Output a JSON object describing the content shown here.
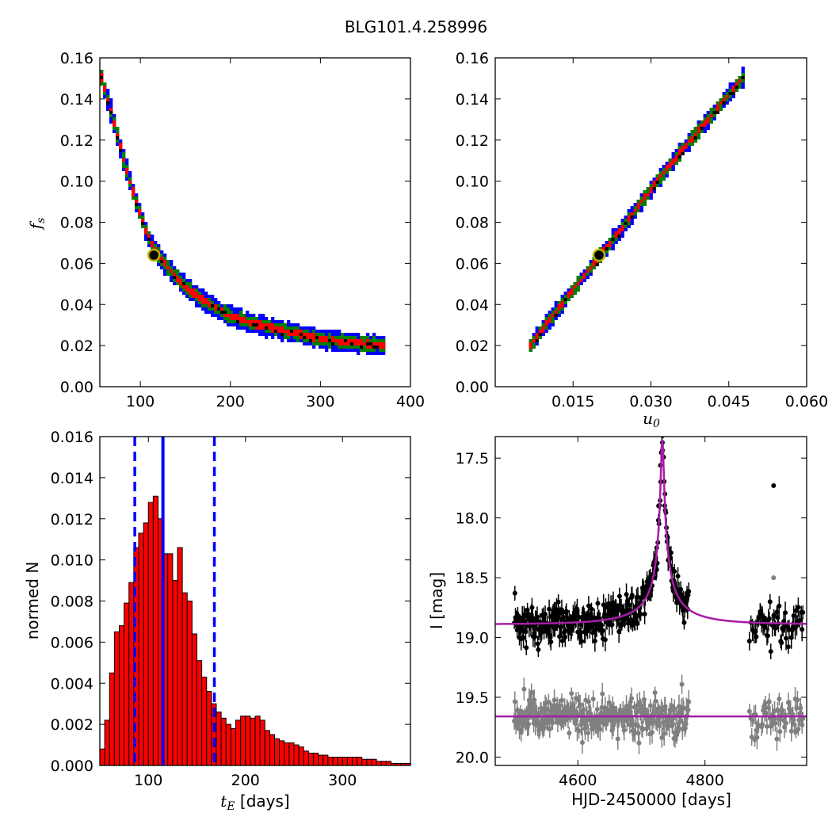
{
  "title": "BLG101.4.258996",
  "colors": {
    "level1": "#ff0000",
    "level2": "#008000",
    "level3": "#0000ff",
    "best": "#000000",
    "marker_ring": "#b5b500",
    "model": "#a81ca8",
    "data_primary": "#000000",
    "data_secondary": "#808080",
    "hist_fill": "#ff0000"
  },
  "chart_data": [
    {
      "id": "fs_vs_tE",
      "type": "heatmap",
      "xlabel": "",
      "ylabel": "f_s",
      "xlim": [
        55,
        400
      ],
      "ylim": [
        0,
        0.16
      ],
      "xticks": [
        100,
        200,
        300,
        400
      ],
      "yticks": [
        "0.00",
        "0.02",
        "0.04",
        "0.06",
        "0.08",
        "0.10",
        "0.12",
        "0.14",
        "0.16"
      ],
      "ridge_x": [
        55,
        65,
        75,
        85,
        95,
        105,
        115,
        130,
        150,
        175,
        200,
        230,
        260,
        300,
        340,
        370
      ],
      "ridge_y": [
        0.15,
        0.135,
        0.118,
        0.102,
        0.088,
        0.075,
        0.066,
        0.057,
        0.048,
        0.04,
        0.034,
        0.03,
        0.027,
        0.023,
        0.021,
        0.02
      ],
      "best_fit": {
        "x": 115,
        "y": 0.064
      }
    },
    {
      "id": "fs_vs_u0",
      "type": "heatmap",
      "xlabel": "u_0",
      "ylabel": "",
      "xlim": [
        0.0,
        0.06
      ],
      "ylim": [
        0,
        0.16
      ],
      "xticks": [
        "0.015",
        "0.030",
        "0.045",
        "0.060"
      ],
      "yticks": [
        "0.00",
        "0.02",
        "0.04",
        "0.06",
        "0.08",
        "0.10",
        "0.12",
        "0.14",
        "0.16"
      ],
      "ridge_x": [
        0.0065,
        0.01,
        0.015,
        0.02,
        0.025,
        0.03,
        0.035,
        0.04,
        0.045,
        0.048
      ],
      "ridge_y": [
        0.02,
        0.032,
        0.048,
        0.064,
        0.08,
        0.097,
        0.113,
        0.128,
        0.143,
        0.152
      ],
      "best_fit": {
        "x": 0.02,
        "y": 0.064
      }
    },
    {
      "id": "tE_histogram",
      "type": "bar",
      "xlabel": "t_E",
      "xlabel_suffix": " [days]",
      "ylabel": "normed N",
      "xlim": [
        50,
        370
      ],
      "ylim": [
        0,
        0.016
      ],
      "xticks": [
        100,
        200,
        300
      ],
      "yticks": [
        "0.000",
        "0.002",
        "0.004",
        "0.006",
        "0.008",
        "0.010",
        "0.012",
        "0.014",
        "0.016"
      ],
      "bin_start": 50,
      "bin_width": 5,
      "values": [
        0.0008,
        0.0022,
        0.0045,
        0.0065,
        0.0068,
        0.0079,
        0.0089,
        0.0106,
        0.0113,
        0.0118,
        0.0128,
        0.0131,
        0.012,
        0.0103,
        0.0103,
        0.009,
        0.0106,
        0.0084,
        0.008,
        0.0064,
        0.0051,
        0.0043,
        0.0036,
        0.003,
        0.0026,
        0.0023,
        0.002,
        0.0018,
        0.0022,
        0.0024,
        0.0024,
        0.0023,
        0.0024,
        0.0022,
        0.0017,
        0.0015,
        0.0013,
        0.0012,
        0.0011,
        0.0011,
        0.001,
        0.0009,
        0.0007,
        0.0006,
        0.0006,
        0.0005,
        0.0005,
        0.0004,
        0.0004,
        0.0004,
        0.0004,
        0.0004,
        0.0004,
        0.0004,
        0.0003,
        0.0003,
        0.0003,
        0.0002,
        0.0002,
        0.0002,
        0.0001,
        0.0001,
        0.0001,
        0.0001
      ],
      "median": 115,
      "interval": [
        86,
        168
      ]
    },
    {
      "id": "light_curve",
      "type": "scatter",
      "xlabel": "HJD-2450000 [days]",
      "ylabel": "I [mag]",
      "xlim": [
        4470,
        4960
      ],
      "ylim": [
        20.07,
        17.32
      ],
      "xticks": [
        4600,
        4800
      ],
      "yticks": [
        "17.5",
        "18.0",
        "18.5",
        "19.0",
        "19.5",
        "20.0"
      ],
      "model": {
        "t0": 4733,
        "baseline": 18.89,
        "u0": 0.02,
        "tE": 115,
        "fs": 0.064
      },
      "secondary_baseline": 19.66,
      "season_ranges": [
        [
          4500,
          4775
        ],
        [
          4870,
          4955
        ]
      ],
      "extra_points": [
        {
          "x": 4733,
          "y": 17.37
        },
        {
          "x": 4730,
          "y": 17.56
        },
        {
          "x": 4737,
          "y": 17.8
        },
        {
          "x": 4727,
          "y": 17.9
        },
        {
          "x": 4740,
          "y": 18.15
        },
        {
          "x": 4724,
          "y": 18.25
        },
        {
          "x": 4745,
          "y": 18.4
        },
        {
          "x": 4720,
          "y": 18.5
        },
        {
          "x": 4750,
          "y": 18.55
        },
        {
          "x": 4908,
          "y": 17.73
        }
      ]
    }
  ]
}
